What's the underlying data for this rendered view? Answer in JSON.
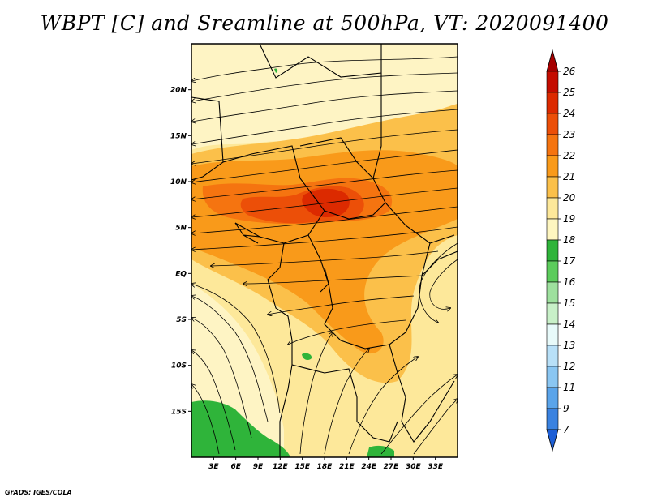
{
  "title": "WBPT [C] and Sreamline at 500hPa, VT: 2020091400",
  "credit": "GrADS: IGES/COLA",
  "map": {
    "lon_range": [
      0,
      36
    ],
    "lat_range": [
      -20,
      25
    ],
    "lat_ticks": [
      "20N",
      "15N",
      "10N",
      "5N",
      "EQ",
      "5S",
      "10S",
      "15S"
    ],
    "lat_values": [
      20,
      15,
      10,
      5,
      0,
      -5,
      -10,
      -15
    ],
    "lon_ticks": [
      "3E",
      "6E",
      "9E",
      "12E",
      "15E",
      "18E",
      "21E",
      "24E",
      "27E",
      "30E",
      "33E"
    ],
    "lon_values": [
      3,
      6,
      9,
      12,
      15,
      18,
      21,
      24,
      27,
      30,
      33
    ]
  },
  "colorbar": {
    "labels": [
      "26",
      "25",
      "24",
      "23",
      "22",
      "21",
      "20",
      "19",
      "18",
      "17",
      "16",
      "15",
      "14",
      "13",
      "12",
      "11",
      "9",
      "7"
    ],
    "colors": [
      "#a50000",
      "#c40c00",
      "#dc2a00",
      "#ec4f08",
      "#f57410",
      "#f99a1a",
      "#fbc04a",
      "#fde89a",
      "#fef6c0",
      "#2fb43a",
      "#5ccc5c",
      "#9ee09e",
      "#c8f0c8",
      "#e8fafa",
      "#b8e0f8",
      "#8ac6f2",
      "#5aa4ea",
      "#3a82e0",
      "#1e5fd6"
    ]
  }
}
